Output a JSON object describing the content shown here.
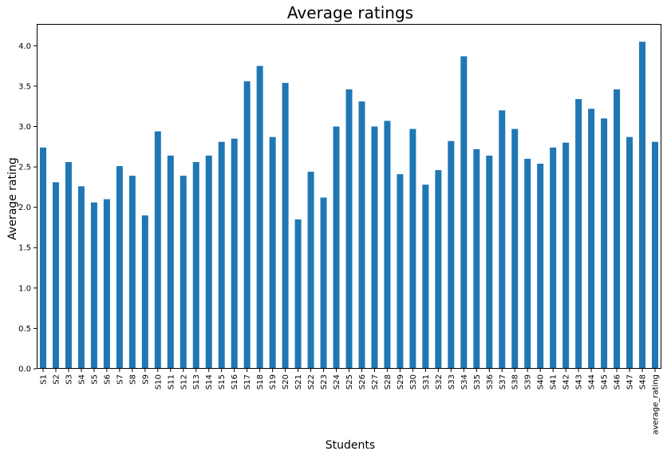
{
  "chart_data": {
    "type": "bar",
    "title": "Average ratings",
    "xlabel": "Students",
    "ylabel": "Average rating",
    "ylim": [
      0,
      4.27
    ],
    "yticks": [
      "0.0",
      "0.5",
      "1.0",
      "1.5",
      "2.0",
      "2.5",
      "3.0",
      "3.5",
      "4.0"
    ],
    "grid": false,
    "legend": "none",
    "bar_color": "#1f77b4",
    "categories": [
      "S1",
      "S2",
      "S3",
      "S4",
      "S5",
      "S6",
      "S7",
      "S8",
      "S9",
      "S10",
      "S11",
      "S12",
      "S13",
      "S14",
      "S15",
      "S16",
      "S17",
      "S18",
      "S19",
      "S20",
      "S21",
      "S22",
      "S23",
      "S24",
      "S25",
      "S26",
      "S27",
      "S28",
      "S29",
      "S30",
      "S31",
      "S32",
      "S33",
      "S34",
      "S35",
      "S36",
      "S37",
      "S38",
      "S39",
      "S40",
      "S41",
      "S42",
      "S43",
      "S44",
      "S45",
      "S46",
      "S47",
      "S48",
      "average_rating"
    ],
    "values": [
      2.74,
      2.31,
      2.56,
      2.26,
      2.06,
      2.1,
      2.51,
      2.39,
      1.9,
      2.94,
      2.64,
      2.39,
      2.56,
      2.64,
      2.81,
      2.85,
      3.56,
      3.75,
      2.87,
      3.54,
      1.85,
      2.44,
      2.12,
      3.0,
      3.46,
      3.31,
      3.0,
      3.07,
      2.41,
      2.97,
      2.28,
      2.46,
      2.82,
      3.87,
      2.72,
      2.64,
      3.2,
      2.97,
      2.6,
      2.54,
      2.74,
      2.8,
      3.34,
      3.22,
      3.1,
      3.46,
      2.87,
      4.05,
      2.81
    ]
  }
}
